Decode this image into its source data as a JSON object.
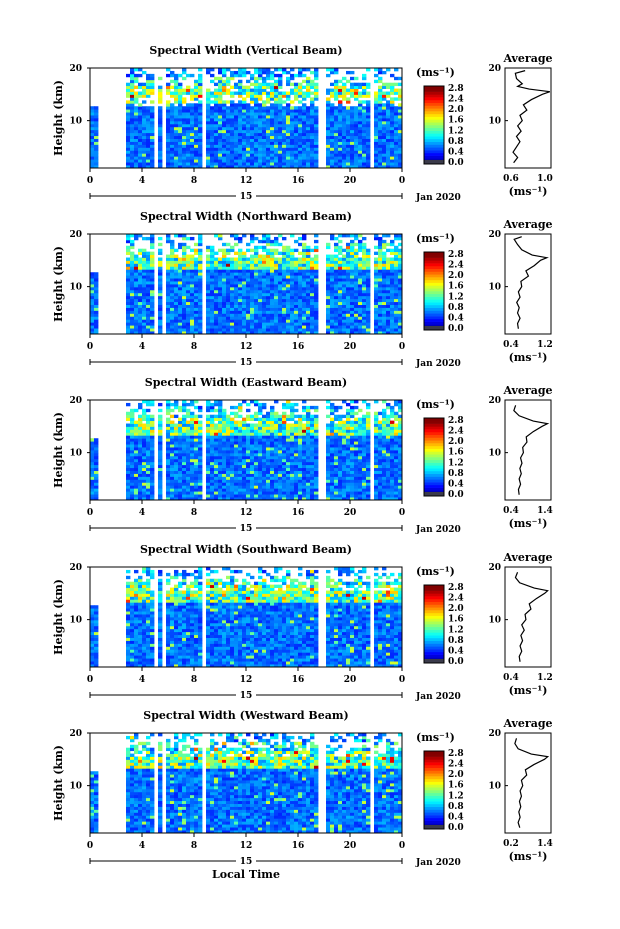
{
  "chart_data": {
    "type": "heatmap",
    "y_label": "Height (km)",
    "y_ticks": [
      "20",
      "10"
    ],
    "x_ticks": [
      "0",
      "4",
      "8",
      "12",
      "16",
      "20",
      "0"
    ],
    "day_label": "15",
    "month_label": "Jan 2020",
    "x_axis_label": "Local Time",
    "colorbar": {
      "unit": "(ms⁻¹)",
      "ticks": [
        "2.8",
        "2.4",
        "2.0",
        "1.6",
        "1.2",
        "0.8",
        "0.4",
        "0.0"
      ],
      "range": [
        0.0,
        2.8
      ]
    },
    "x_range_hours": [
      0,
      24
    ],
    "y_range_km": [
      1,
      20
    ],
    "data_gaps_hours": [
      [
        0.6,
        2.8
      ],
      [
        4.8,
        5.2
      ],
      [
        5.6,
        6.0
      ],
      [
        8.5,
        9.0
      ],
      [
        17.6,
        18.1
      ],
      [
        21.5,
        21.9
      ]
    ],
    "profile_unit": "(ms⁻¹)",
    "panels": [
      {
        "title": "Spectral Width (Vertical Beam)",
        "avg_title": "Average",
        "avg_xticks": [
          "0.6",
          "1.0"
        ],
        "avg_xrange": [
          0.4,
          1.2
        ],
        "avg_profile": [
          [
            2,
            0.55
          ],
          [
            3,
            0.62
          ],
          [
            4,
            0.54
          ],
          [
            5,
            0.6
          ],
          [
            6,
            0.66
          ],
          [
            7,
            0.6
          ],
          [
            8,
            0.68
          ],
          [
            9,
            0.62
          ],
          [
            10,
            0.7
          ],
          [
            11,
            0.66
          ],
          [
            12,
            0.78
          ],
          [
            13,
            0.72
          ],
          [
            14,
            0.86
          ],
          [
            15,
            1.05
          ],
          [
            15.5,
            1.18
          ],
          [
            16,
            0.82
          ],
          [
            16.5,
            0.62
          ],
          [
            17,
            0.7
          ],
          [
            18,
            0.6
          ],
          [
            19,
            0.58
          ],
          [
            19.5,
            0.75
          ]
        ]
      },
      {
        "title": "Spectral Width (Northward Beam)",
        "avg_title": "Average",
        "avg_xticks": [
          "0.4",
          "1.2"
        ],
        "avg_xrange": [
          0.2,
          1.3
        ],
        "avg_profile": [
          [
            2,
            0.52
          ],
          [
            3,
            0.5
          ],
          [
            4,
            0.56
          ],
          [
            5,
            0.5
          ],
          [
            6,
            0.54
          ],
          [
            7,
            0.48
          ],
          [
            8,
            0.56
          ],
          [
            9,
            0.52
          ],
          [
            10,
            0.6
          ],
          [
            11,
            0.58
          ],
          [
            12,
            0.76
          ],
          [
            13,
            0.7
          ],
          [
            14,
            0.9
          ],
          [
            15,
            1.05
          ],
          [
            15.5,
            1.2
          ],
          [
            16,
            0.85
          ],
          [
            17,
            0.6
          ],
          [
            18,
            0.5
          ],
          [
            19,
            0.42
          ],
          [
            19.5,
            0.6
          ]
        ]
      },
      {
        "title": "Spectral Width (Eastward Beam)",
        "avg_title": "Average",
        "avg_xticks": [
          "0.4",
          "1.4"
        ],
        "avg_xrange": [
          0.2,
          1.5
        ],
        "avg_profile": [
          [
            2,
            0.6
          ],
          [
            3,
            0.58
          ],
          [
            4,
            0.64
          ],
          [
            5,
            0.6
          ],
          [
            6,
            0.66
          ],
          [
            7,
            0.62
          ],
          [
            8,
            0.68
          ],
          [
            9,
            0.64
          ],
          [
            10,
            0.72
          ],
          [
            11,
            0.7
          ],
          [
            12,
            0.82
          ],
          [
            13,
            0.8
          ],
          [
            14,
            1.0
          ],
          [
            15,
            1.25
          ],
          [
            15.5,
            1.4
          ],
          [
            16,
            1.0
          ],
          [
            17,
            0.6
          ],
          [
            18,
            0.45
          ],
          [
            19,
            0.5
          ]
        ]
      },
      {
        "title": "Spectral Width (Southward Beam)",
        "avg_title": "Average",
        "avg_xticks": [
          "0.4",
          "1.2"
        ],
        "avg_xrange": [
          0.2,
          1.3
        ],
        "avg_profile": [
          [
            2,
            0.56
          ],
          [
            3,
            0.54
          ],
          [
            4,
            0.6
          ],
          [
            5,
            0.56
          ],
          [
            6,
            0.62
          ],
          [
            7,
            0.58
          ],
          [
            8,
            0.66
          ],
          [
            9,
            0.6
          ],
          [
            10,
            0.7
          ],
          [
            11,
            0.68
          ],
          [
            12,
            0.82
          ],
          [
            13,
            0.78
          ],
          [
            14,
            0.95
          ],
          [
            15,
            1.15
          ],
          [
            15.5,
            1.22
          ],
          [
            16,
            0.9
          ],
          [
            17,
            0.55
          ],
          [
            18,
            0.45
          ],
          [
            19,
            0.5
          ]
        ]
      },
      {
        "title": "Spectral Width (Westward Beam)",
        "avg_title": "Average",
        "avg_xticks": [
          "0.2",
          "1.4"
        ],
        "avg_xrange": [
          0.1,
          1.5
        ],
        "avg_profile": [
          [
            2,
            0.55
          ],
          [
            3,
            0.5
          ],
          [
            4,
            0.56
          ],
          [
            5,
            0.52
          ],
          [
            6,
            0.58
          ],
          [
            7,
            0.54
          ],
          [
            8,
            0.6
          ],
          [
            9,
            0.56
          ],
          [
            10,
            0.64
          ],
          [
            11,
            0.6
          ],
          [
            12,
            0.76
          ],
          [
            13,
            0.72
          ],
          [
            14,
            0.98
          ],
          [
            15,
            1.3
          ],
          [
            15.5,
            1.4
          ],
          [
            16,
            0.9
          ],
          [
            17,
            0.5
          ],
          [
            18,
            0.4
          ],
          [
            19,
            0.45
          ]
        ]
      }
    ]
  }
}
